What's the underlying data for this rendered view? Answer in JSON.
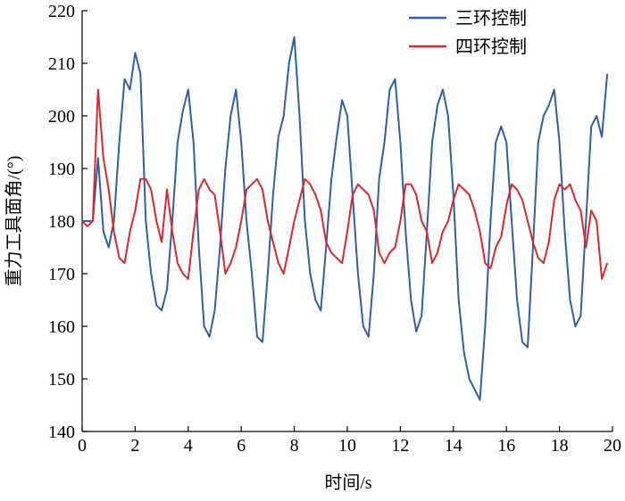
{
  "chart_data": {
    "type": "line",
    "xlabel": "时间/s",
    "ylabel": "重力工具面角/(°)",
    "x": [
      0,
      0.2,
      0.4,
      0.6,
      0.8,
      1,
      1.2,
      1.4,
      1.6,
      1.8,
      2,
      2.2,
      2.4,
      2.6,
      2.8,
      3,
      3.2,
      3.4,
      3.6,
      3.8,
      4,
      4.2,
      4.4,
      4.6,
      4.8,
      5,
      5.2,
      5.4,
      5.6,
      5.8,
      6,
      6.2,
      6.4,
      6.6,
      6.8,
      7,
      7.2,
      7.4,
      7.6,
      7.8,
      8,
      8.2,
      8.4,
      8.6,
      8.8,
      9,
      9.2,
      9.4,
      9.6,
      9.8,
      10,
      10.2,
      10.4,
      10.6,
      10.8,
      11,
      11.2,
      11.4,
      11.6,
      11.8,
      12,
      12.2,
      12.4,
      12.6,
      12.8,
      13,
      13.2,
      13.4,
      13.6,
      13.8,
      14,
      14.2,
      14.4,
      14.6,
      14.8,
      15,
      15.2,
      15.4,
      15.6,
      15.8,
      16,
      16.2,
      16.4,
      16.6,
      16.8,
      17,
      17.2,
      17.4,
      17.6,
      17.8,
      18,
      18.2,
      18.4,
      18.6,
      18.8,
      19,
      19.2,
      19.4,
      19.6,
      19.8
    ],
    "series": [
      {
        "name": "三环控制",
        "color": "#2e5fa8",
        "values": [
          180,
          180,
          180,
          192,
          178,
          175,
          180,
          195,
          207,
          205,
          212,
          208,
          180,
          170,
          164,
          163,
          167,
          180,
          195,
          201,
          205,
          195,
          175,
          160,
          158,
          163,
          175,
          190,
          200,
          205,
          195,
          180,
          170,
          158,
          157,
          170,
          185,
          196,
          200,
          210,
          215,
          200,
          180,
          170,
          165,
          163,
          175,
          188,
          196,
          203,
          200,
          185,
          170,
          160,
          158,
          170,
          188,
          195,
          205,
          207,
          195,
          178,
          165,
          159,
          162,
          178,
          195,
          202,
          205,
          200,
          185,
          165,
          155,
          150,
          148,
          146,
          160,
          180,
          195,
          198,
          195,
          180,
          165,
          157,
          156,
          175,
          195,
          200,
          202,
          205,
          195,
          178,
          165,
          160,
          162,
          180,
          198,
          200,
          196,
          208
        ]
      },
      {
        "name": "四环控制",
        "color": "#e0262a",
        "values": [
          180,
          179,
          180,
          205,
          192,
          186,
          178,
          173,
          172,
          178,
          182,
          188,
          188,
          186,
          180,
          176,
          186,
          178,
          172,
          170,
          169,
          178,
          186,
          188,
          186,
          185,
          178,
          170,
          172,
          175,
          180,
          186,
          187,
          188,
          186,
          180,
          176,
          172,
          170,
          175,
          180,
          184,
          188,
          187,
          185,
          182,
          176,
          174,
          173,
          172,
          178,
          185,
          187,
          186,
          185,
          182,
          174,
          172,
          174,
          175,
          180,
          187,
          187,
          185,
          180,
          178,
          172,
          174,
          178,
          180,
          184,
          187,
          186,
          185,
          182,
          178,
          172,
          171,
          175,
          177,
          183,
          187,
          186,
          184,
          180,
          176,
          173,
          172,
          176,
          184,
          187,
          186,
          187,
          184,
          182,
          175,
          182,
          180,
          169,
          172
        ]
      }
    ],
    "xlim": [
      0,
      20
    ],
    "xticks": [
      0,
      2,
      4,
      6,
      8,
      10,
      12,
      14,
      16,
      18,
      20
    ],
    "ylim": [
      140,
      220
    ],
    "yticks": [
      140,
      150,
      160,
      170,
      180,
      190,
      200,
      210,
      220
    ],
    "legend": "upper right"
  }
}
